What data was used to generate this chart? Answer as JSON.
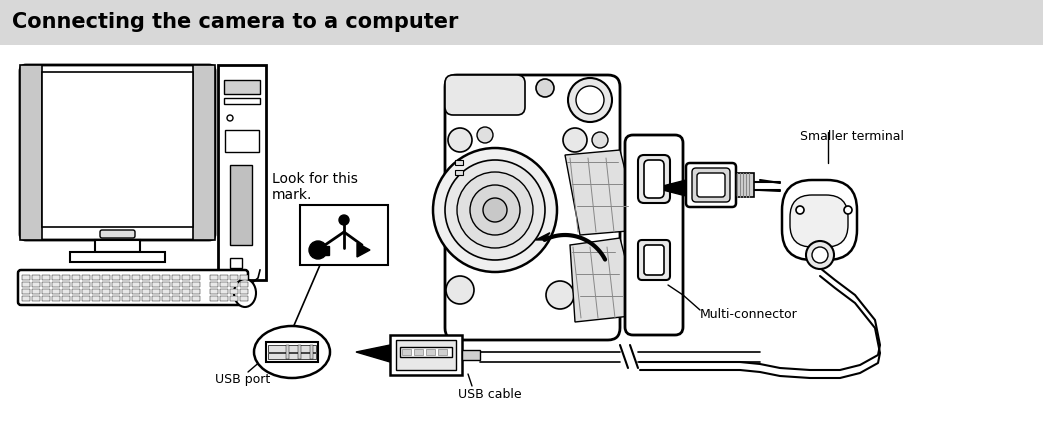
{
  "title": "Connecting the camera to a computer",
  "title_bg": "#d8d8d8",
  "title_color": "#000000",
  "bg_color": "#ffffff",
  "labels": {
    "smaller_terminal": "Smaller terminal",
    "multi_connector": "Multi-connector",
    "usb_port": "USB port",
    "usb_cable": "USB cable",
    "look_for_line1": "Look for this",
    "look_for_line2": "mark."
  },
  "fig_width": 10.43,
  "fig_height": 4.28,
  "dpi": 100
}
